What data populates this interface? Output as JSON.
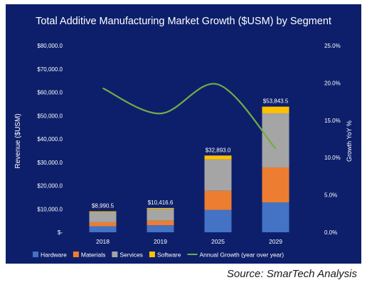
{
  "chart_data": {
    "type": "bar",
    "stacked": true,
    "title": "Total Additive Manufacturing Market Growth ($USM) by Segment",
    "ylabel": "Revenue ($USM)",
    "y2label": "Growth YoY %",
    "ylim": [
      0,
      80000
    ],
    "y2lim": [
      0,
      25
    ],
    "y_ticks": [
      "$-",
      "$10,000.0",
      "$20,000.0",
      "$30,000.0",
      "$40,000.0",
      "$50,000.0",
      "$60,000.0",
      "$70,000.0",
      "$80,000.0"
    ],
    "y2_ticks": [
      "0.0%",
      "5.0%",
      "10.0%",
      "15.0%",
      "20.0%",
      "25.0%"
    ],
    "categories": [
      "2018",
      "2019",
      "2025",
      "2029"
    ],
    "series": [
      {
        "name": "Hardware",
        "color": "#4472c4",
        "values": [
          2600,
          3000,
          9600,
          12800
        ]
      },
      {
        "name": "Materials",
        "color": "#ed7d31",
        "values": [
          1700,
          2000,
          8200,
          15000
        ]
      },
      {
        "name": "Services",
        "color": "#a5a5a5",
        "values": [
          4300,
          5000,
          13400,
          23200
        ]
      },
      {
        "name": "Software",
        "color": "#ffc000",
        "values": [
          390.5,
          416.6,
          1693,
          2843.5
        ]
      }
    ],
    "totals": [
      8990.5,
      10416.6,
      32893.0,
      53843.5
    ],
    "total_labels": [
      "$8,990.5",
      "$10,416.6",
      "$32,893.0",
      "$53,843.5"
    ],
    "line": {
      "name": "Annual Growth (year over year)",
      "color": "#70ad47",
      "values": [
        19.3,
        15.9,
        19.8,
        11.2
      ]
    },
    "legend_position": "bottom",
    "grid": false
  },
  "source": "Source: SmarTech Analysis"
}
